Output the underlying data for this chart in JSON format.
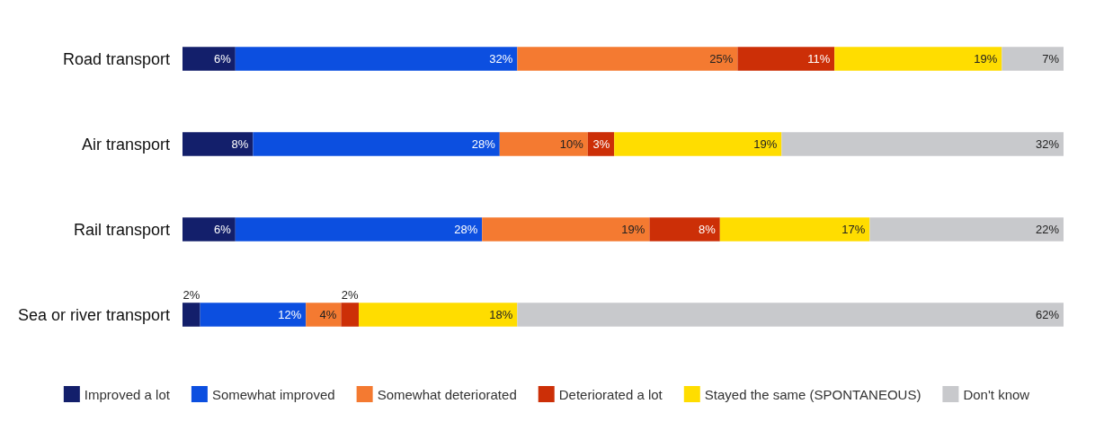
{
  "chart_data": {
    "type": "bar",
    "orientation": "horizontal",
    "stacked": true,
    "legend": "bottom",
    "categories": [
      "Road transport",
      "Air transport",
      "Rail transport",
      "Sea or river transport"
    ],
    "series": [
      {
        "name": "Improved a lot",
        "color": "#131f6b",
        "values": [
          6,
          8,
          6,
          2
        ],
        "value_labels": [
          "6%",
          "8%",
          "6%",
          "2%"
        ]
      },
      {
        "name": "Somewhat improved",
        "color": "#0c4fe0",
        "values": [
          32,
          28,
          28,
          12
        ],
        "value_labels": [
          "32%",
          "28%",
          "28%",
          "12%"
        ]
      },
      {
        "name": "Somewhat deteriorated",
        "color": "#f47a31",
        "values": [
          25,
          10,
          19,
          4
        ],
        "value_labels": [
          "25%",
          "10%",
          "19%",
          "4%"
        ]
      },
      {
        "name": "Deteriorated a lot",
        "color": "#cc2f07",
        "values": [
          11,
          3,
          8,
          2
        ],
        "value_labels": [
          "11%",
          "3%",
          "8%",
          "2%"
        ]
      },
      {
        "name": "Stayed the same (SPONTANEOUS)",
        "color": "#ffdd00",
        "values": [
          19,
          19,
          17,
          18
        ],
        "value_labels": [
          "19%",
          "19%",
          "17%",
          "18%"
        ]
      },
      {
        "name": "Don't know",
        "color": "#c8c9cc",
        "values": [
          7,
          32,
          22,
          62
        ],
        "value_labels": [
          "7%",
          "32%",
          "22%",
          "62%"
        ]
      }
    ]
  }
}
